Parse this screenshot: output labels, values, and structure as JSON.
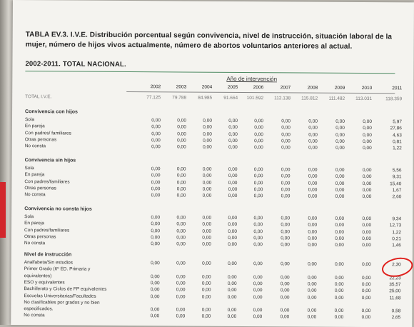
{
  "table": {
    "title": "TABLA EV.3. I.V.E. Distribución porcentual según convivencia, nivel de instrucción, situación laboral de la mujer, número de hijos vivos actualmente, número de abortos voluntarios anteriores al actual.",
    "subtitle": "2002-2011. TOTAL NACIONAL.",
    "header_group": "Año de intervención",
    "years": [
      "2002",
      "2003",
      "2004",
      "2005",
      "2006",
      "2007",
      "2008",
      "2009",
      "2010",
      "2011"
    ],
    "total": {
      "label": "TOTAL I.V.E.",
      "values": [
        "77.125",
        "79.788",
        "84.985",
        "91.664",
        "101.592",
        "112.138",
        "115.812",
        "111.482",
        "113.031",
        "118.359"
      ]
    },
    "sections": [
      {
        "title": "Convivencia con hijos",
        "rows": [
          {
            "label": "Sola",
            "values": [
              "0,00",
              "0,00",
              "0,00",
              "0,00",
              "0,00",
              "0,00",
              "0,00",
              "0,00",
              "0,00",
              "5,97"
            ]
          },
          {
            "label": "En pareja",
            "values": [
              "0,00",
              "0,00",
              "0,00",
              "0,00",
              "0,00",
              "0,00",
              "0,00",
              "0,00",
              "0,00",
              "27,86"
            ]
          },
          {
            "label": "Con padres/ familiares",
            "values": [
              "0,00",
              "0,00",
              "0,00",
              "0,00",
              "0,00",
              "0,00",
              "0,00",
              "0,00",
              "0,00",
              "4,63"
            ]
          },
          {
            "label": "Otras personas",
            "values": [
              "0,00",
              "0,00",
              "0,00",
              "0,00",
              "0,00",
              "0,00",
              "0,00",
              "0,00",
              "0,00",
              "0,81"
            ]
          },
          {
            "label": "No consta",
            "values": [
              "0,00",
              "0,00",
              "0,00",
              "0,00",
              "0,00",
              "0,00",
              "0,00",
              "0,00",
              "0,00",
              "1,22"
            ]
          }
        ]
      },
      {
        "title": "Convivencia sin hijos",
        "rows": [
          {
            "label": "Sola",
            "values": [
              "0,00",
              "0,00",
              "0,00",
              "0,00",
              "0,00",
              "0,00",
              "0,00",
              "0,00",
              "0,00",
              "5,56"
            ]
          },
          {
            "label": "En pareja",
            "values": [
              "0,00",
              "0,00",
              "0,00",
              "0,00",
              "0,00",
              "0,00",
              "0,00",
              "0,00",
              "0,00",
              "9,31"
            ]
          },
          {
            "label": "Con padres/familiares",
            "values": [
              "0,00",
              "0,00",
              "0,00",
              "0,00",
              "0,00",
              "0,00",
              "0,00",
              "0,00",
              "0,00",
              "15,40"
            ]
          },
          {
            "label": "Otras personas",
            "values": [
              "0,00",
              "0,00",
              "0,00",
              "0,00",
              "0,00",
              "0,00",
              "0,00",
              "0,00",
              "0,00",
              "1,67"
            ]
          },
          {
            "label": "No consta",
            "values": [
              "0,00",
              "0,00",
              "0,00",
              "0,00",
              "0,00",
              "0,00",
              "0,00",
              "0,00",
              "0,00",
              "2,60"
            ]
          }
        ]
      },
      {
        "title": "Convivencia no consta hijos",
        "rows": [
          {
            "label": "Sola",
            "values": [
              "0,00",
              "0,00",
              "0,00",
              "0,00",
              "0,00",
              "0,00",
              "0,00",
              "0,00",
              "0,00",
              "9,34"
            ]
          },
          {
            "label": "En pareja",
            "values": [
              "0,00",
              "0,00",
              "0,00",
              "0,00",
              "0,00",
              "0,00",
              "0,00",
              "0,00",
              "0,00",
              "12,73"
            ]
          },
          {
            "label": "Con padres/familiares",
            "values": [
              "0,00",
              "0,00",
              "0,00",
              "0,00",
              "0,00",
              "0,00",
              "0,00",
              "0,00",
              "0,00",
              "1,22"
            ]
          },
          {
            "label": "Otras personas",
            "values": [
              "0,00",
              "0,00",
              "0,00",
              "0,00",
              "0,00",
              "0,00",
              "0,00",
              "0,00",
              "0,00",
              "0,21"
            ]
          },
          {
            "label": "No consta",
            "values": [
              "0,00",
              "0,00",
              "0,00",
              "0,00",
              "0,00",
              "0,00",
              "0,00",
              "0,00",
              "0,00",
              "1,46"
            ]
          }
        ]
      },
      {
        "title": "Nivel de instrucción",
        "rows": [
          {
            "label": "Analfabeta/Sin estudios",
            "values": [
              "0,00",
              "0,00",
              "0,00",
              "0,00",
              "0,00",
              "0,00",
              "0,00",
              "0,00",
              "0,00",
              "2,30"
            ]
          },
          {
            "label": "Primer Grado (6º ED. Primaria y",
            "values": [
              "",
              "",
              "",
              "",
              "",
              "",
              "",
              "",
              "",
              ""
            ]
          },
          {
            "label": "equivalentes)",
            "values": [
              "0,00",
              "0,00",
              "0,00",
              "0,00",
              "0,00",
              "0,00",
              "0,00",
              "0,00",
              "0,00",
              "22,23"
            ]
          },
          {
            "label": "ESO y equivalentes",
            "values": [
              "0,00",
              "0,00",
              "0,00",
              "0,00",
              "0,00",
              "0,00",
              "0,00",
              "0,00",
              "0,00",
              "35,57"
            ]
          },
          {
            "label": "Bachillerato y Ciclos de FP equivalentes",
            "values": [
              "0,00",
              "0,00",
              "0,00",
              "0,00",
              "0,00",
              "0,00",
              "0,00",
              "0,00",
              "0,00",
              "25,00"
            ]
          },
          {
            "label": "Escuelas Universitarias/Facultades",
            "values": [
              "0,00",
              "0,00",
              "0,00",
              "0,00",
              "0,00",
              "0,00",
              "0,00",
              "0,00",
              "0,00",
              "11,68"
            ]
          },
          {
            "label": "No clasificables por grados y no bien",
            "values": [
              "",
              "",
              "",
              "",
              "",
              "",
              "",
              "",
              "",
              ""
            ]
          },
          {
            "label": "especificados.",
            "values": [
              "0,00",
              "0,00",
              "0,00",
              "0,00",
              "0,00",
              "0,00",
              "0,00",
              "0,00",
              "0,00",
              "0,58"
            ]
          },
          {
            "label": "No consta",
            "values": [
              "0,00",
              "0,00",
              "0,00",
              "0,00",
              "0,00",
              "0,00",
              "0,00",
              "0,00",
              "0,00",
              "2,65"
            ]
          }
        ]
      }
    ],
    "highlight_color": "#e0201c",
    "rule_color": "#4d8a62"
  }
}
